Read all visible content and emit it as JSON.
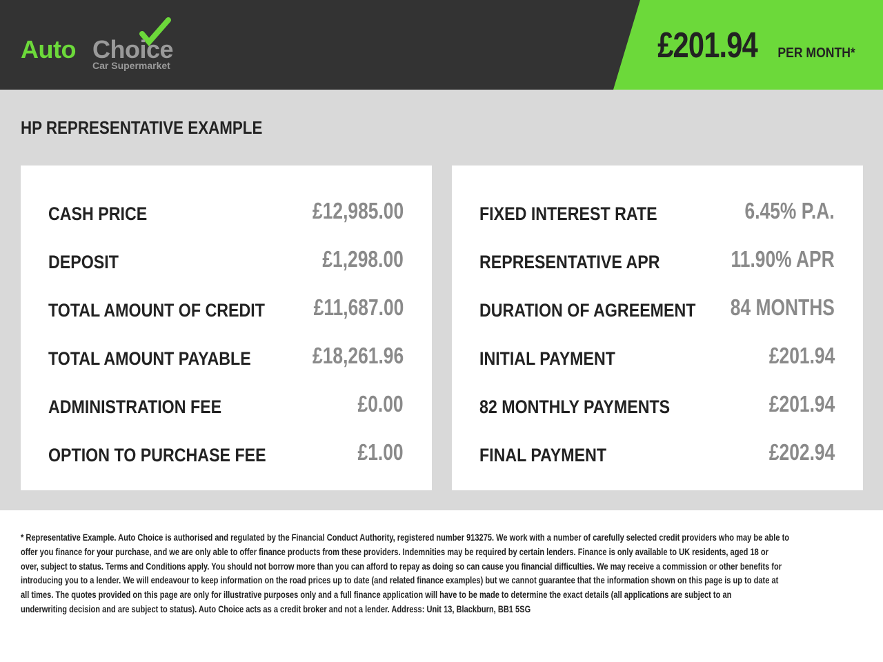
{
  "brand": {
    "name_part1": "Auto",
    "name_part2": "Choice",
    "tagline": "Car Supermarket"
  },
  "header": {
    "monthly_price": "£201.94",
    "per_month_label": "PER MONTH*"
  },
  "colors": {
    "accent": "#6cd93a",
    "header_bg": "#333333",
    "band_bg": "#d9d9d9",
    "value_text": "#8a8a8a"
  },
  "section_title": "HP REPRESENTATIVE EXAMPLE",
  "left_card": [
    {
      "label": "CASH PRICE",
      "value": "£12,985.00"
    },
    {
      "label": "DEPOSIT",
      "value": "£1,298.00"
    },
    {
      "label": "TOTAL AMOUNT OF CREDIT",
      "value": "£11,687.00"
    },
    {
      "label": "TOTAL AMOUNT PAYABLE",
      "value": "£18,261.96"
    },
    {
      "label": "ADMINISTRATION FEE",
      "value": "£0.00"
    },
    {
      "label": "OPTION TO PURCHASE FEE",
      "value": "£1.00"
    }
  ],
  "right_card": [
    {
      "label": "FIXED INTEREST RATE",
      "value": "6.45% P.A."
    },
    {
      "label": "REPRESENTATIVE APR",
      "value": "11.90% APR"
    },
    {
      "label": "DURATION OF AGREEMENT",
      "value": "84 MONTHS"
    },
    {
      "label": "INITIAL PAYMENT",
      "value": "£201.94"
    },
    {
      "label": "82 MONTHLY PAYMENTS",
      "value": "£201.94"
    },
    {
      "label": "FINAL PAYMENT",
      "value": "£202.94"
    }
  ],
  "disclaimer_lines": [
    "* Representative Example. Auto Choice is authorised and regulated by the Financial Conduct Authority, registered number 913275. We work with a number of carefully selected credit providers who may be able to",
    "offer you finance for your purchase, and we are only able to offer finance products from these providers. Indemnities may be required by certain lenders. Finance is only available to UK residents, aged 18 or",
    "over, subject to status. Terms and Conditions apply. You should not borrow more than you can afford to repay as doing so can cause you financial difficulties. We may receive a commission or other benefits for",
    "introducing you to a lender. We will endeavour to keep information on the road prices up to date (and related finance examples) but we cannot guarantee that the information shown on this page is up to date at",
    "all times. The quotes provided on this page are only for illustrative purposes only and a full finance application will have to be made to determine the exact details (all applications are subject to an",
    "underwriting decision and are subject to status). Auto Choice acts as a credit broker and not a lender. Address: Unit 13, Blackburn, BB1 5SG"
  ]
}
